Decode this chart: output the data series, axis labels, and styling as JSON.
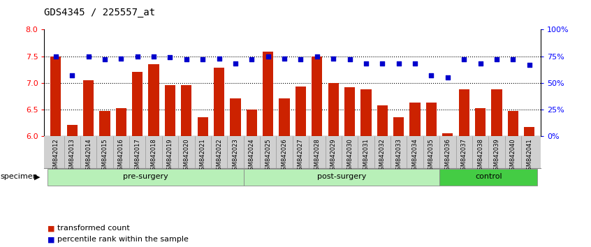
{
  "title": "GDS4345 / 225557_at",
  "samples": [
    "GSM842012",
    "GSM842013",
    "GSM842014",
    "GSM842015",
    "GSM842016",
    "GSM842017",
    "GSM842018",
    "GSM842019",
    "GSM842020",
    "GSM842021",
    "GSM842022",
    "GSM842023",
    "GSM842024",
    "GSM842025",
    "GSM842026",
    "GSM842027",
    "GSM842028",
    "GSM842029",
    "GSM842030",
    "GSM842031",
    "GSM842032",
    "GSM842033",
    "GSM842034",
    "GSM842035",
    "GSM842036",
    "GSM842037",
    "GSM842038",
    "GSM842039",
    "GSM842040",
    "GSM842041"
  ],
  "transformed_count": [
    7.5,
    6.2,
    7.05,
    6.47,
    6.52,
    7.2,
    7.35,
    6.95,
    6.95,
    6.35,
    7.28,
    6.7,
    6.5,
    7.58,
    6.7,
    6.93,
    7.5,
    7.0,
    6.92,
    6.88,
    6.58,
    6.35,
    6.63,
    6.63,
    6.05,
    6.88,
    6.52,
    6.88,
    6.47,
    6.17
  ],
  "percentile_rank": [
    75,
    57,
    75,
    72,
    73,
    75,
    75,
    74,
    72,
    72,
    73,
    68,
    72,
    75,
    73,
    72,
    75,
    73,
    72,
    68,
    68,
    68,
    68,
    57,
    55,
    72,
    68,
    72,
    72,
    67
  ],
  "bar_color": "#cc2200",
  "dot_color": "#0000cc",
  "ylim_left": [
    6.0,
    8.0
  ],
  "ylim_right": [
    0,
    100
  ],
  "yticks_left": [
    6.0,
    6.5,
    7.0,
    7.5,
    8.0
  ],
  "yticks_right": [
    0,
    25,
    50,
    75,
    100
  ],
  "ytick_labels_right": [
    "0%",
    "25%",
    "50%",
    "75%",
    "100%"
  ],
  "hlines": [
    6.5,
    7.0,
    7.5
  ],
  "group_ranges": [
    [
      0,
      12
    ],
    [
      12,
      24
    ],
    [
      24,
      30
    ]
  ],
  "group_labels": [
    "pre-surgery",
    "post-surgery",
    "control"
  ],
  "group_colors": [
    "#b8f0b8",
    "#b8f0b8",
    "#44cc44"
  ],
  "group_edge_color": "#888888",
  "xticklabel_bg": "#d0d0d0",
  "legend_items": [
    {
      "label": "transformed count",
      "color": "#cc2200"
    },
    {
      "label": "percentile rank within the sample",
      "color": "#0000cc"
    }
  ]
}
